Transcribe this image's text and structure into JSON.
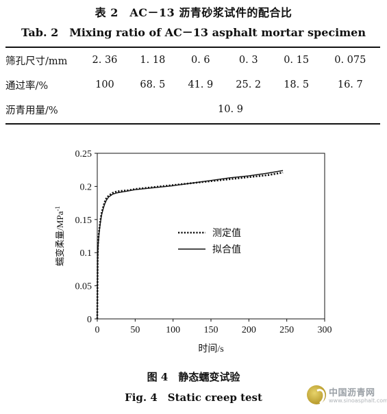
{
  "table": {
    "caption_cn": "表 2　AC－13 沥青砂浆试件的配合比",
    "caption_en": "Tab. 2　Mixing ratio of AC－13 asphalt mortar specimen",
    "rows": [
      {
        "label": "筛孔尺寸/mm",
        "cells": [
          "2. 36",
          "1. 18",
          "0. 6",
          "0. 3",
          "0. 15",
          "0. 075"
        ]
      },
      {
        "label": "通过率/%",
        "cells": [
          "100",
          "68. 5",
          "41. 9",
          "25. 2",
          "18. 5",
          "16. 7"
        ]
      }
    ],
    "asphalt_row": {
      "label": "沥青用量/%",
      "value": "10. 9"
    }
  },
  "figure": {
    "caption_cn": "图 4　静态蠕变试验",
    "caption_en": "Fig. 4　Static creep test"
  },
  "chart_data": {
    "type": "line",
    "title": "",
    "xlabel": "时间/s",
    "ylabel": "蠕变柔量/MPa",
    "ylabel_sup": "-1",
    "xlim": [
      0,
      300
    ],
    "ylim": [
      0,
      0.25
    ],
    "x_ticks": [
      "0",
      "50",
      "100",
      "150",
      "200",
      "250",
      "300"
    ],
    "y_ticks": [
      "0",
      "0.05",
      "0.1",
      "0.15",
      "0.2",
      "0.25"
    ],
    "legend_position": "center-right",
    "series": [
      {
        "name": "测定值",
        "style": "dotted",
        "x": [
          0,
          0.5,
          1,
          2,
          3,
          4,
          5,
          6,
          8,
          10,
          12,
          15,
          20,
          25,
          30,
          40,
          50,
          75,
          100,
          125,
          150,
          175,
          200,
          225,
          245
        ],
        "y": [
          0,
          0.095,
          0.113,
          0.128,
          0.138,
          0.147,
          0.155,
          0.161,
          0.17,
          0.177,
          0.182,
          0.186,
          0.19,
          0.192,
          0.193,
          0.194,
          0.196,
          0.199,
          0.202,
          0.205,
          0.208,
          0.211,
          0.214,
          0.217,
          0.221
        ]
      },
      {
        "name": "拟合值",
        "style": "solid",
        "x": [
          0,
          0.5,
          1,
          2,
          3,
          4,
          5,
          6,
          8,
          10,
          12,
          15,
          20,
          25,
          30,
          40,
          50,
          75,
          100,
          125,
          150,
          175,
          200,
          225,
          245
        ],
        "y": [
          0,
          0.09,
          0.108,
          0.124,
          0.135,
          0.144,
          0.152,
          0.158,
          0.167,
          0.174,
          0.179,
          0.184,
          0.188,
          0.19,
          0.191,
          0.193,
          0.195,
          0.198,
          0.201,
          0.205,
          0.209,
          0.213,
          0.216,
          0.22,
          0.224
        ]
      }
    ]
  },
  "watermark": {
    "name": "中国沥青网",
    "url": "www.sinoasphalt.com"
  }
}
